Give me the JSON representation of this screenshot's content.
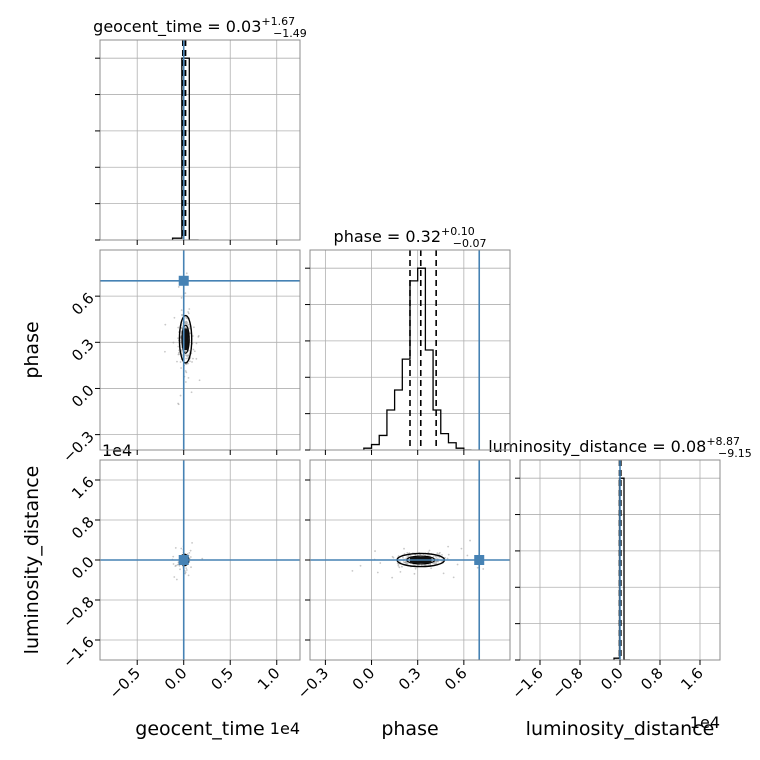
{
  "chart_data": {
    "type": "corner",
    "parameters": [
      "geocent_time",
      "phase",
      "luminosity_distance"
    ],
    "axis_labels": [
      "geocent_time",
      "phase",
      "luminosity_distance"
    ],
    "offset_labels": {
      "geocent_time": "1e4",
      "luminosity_distance": "1e4"
    },
    "ranges": {
      "geocent_time": [
        -0.9,
        1.25
      ],
      "phase": [
        -0.4,
        0.9
      ],
      "luminosity_distance": [
        -2.0,
        2.0
      ]
    },
    "ticks": {
      "geocent_time": {
        "values": [
          -0.5,
          0.0,
          0.5,
          1.0
        ],
        "labels": [
          "−0.5",
          "0.0",
          "0.5",
          "1.0"
        ]
      },
      "phase": {
        "values": [
          -0.3,
          0.0,
          0.3,
          0.6
        ],
        "labels": [
          "−0.3",
          "0.0",
          "0.3",
          "0.6"
        ]
      },
      "luminosity_distance": {
        "values": [
          -1.6,
          -0.8,
          0.0,
          0.8,
          1.6
        ],
        "labels": [
          "−1.6",
          "−0.8",
          "0.0",
          "0.8",
          "1.6"
        ]
      }
    },
    "truths": {
      "geocent_time": 0.0,
      "phase": 0.7,
      "luminosity_distance": 0.0
    },
    "truth_color": "#4682b4",
    "titles": [
      {
        "param": "geocent_time",
        "main": "geocent_time = 0.03",
        "sup": "+1.67",
        "sub": "−1.49"
      },
      {
        "param": "phase",
        "main": "phase = 0.32",
        "sup": "+0.10",
        "sub": "−0.07"
      },
      {
        "param": "luminosity_distance",
        "main": "luminosity_distance = 0.08",
        "sup": "+8.87",
        "sub": "−9.15"
      }
    ],
    "quantiles": {
      "geocent_time": [
        -0.01,
        0.003,
        0.02
      ],
      "phase": [
        0.25,
        0.32,
        0.42
      ],
      "luminosity_distance": [
        -0.01,
        0.008,
        0.017
      ]
    },
    "histograms": {
      "geocent_time": {
        "edges": [
          -0.12,
          -0.02,
          0.06,
          0.16
        ],
        "heights": [
          1,
          100,
          0
        ]
      },
      "phase": {
        "edges": [
          -0.05,
          0.0,
          0.05,
          0.1,
          0.15,
          0.2,
          0.25,
          0.3,
          0.35,
          0.4,
          0.45,
          0.5,
          0.55,
          0.6,
          0.65
        ],
        "heights": [
          1,
          3,
          8,
          22,
          33,
          50,
          93,
          100,
          55,
          22,
          9,
          4,
          1,
          0
        ]
      },
      "luminosity_distance": {
        "edges": [
          -0.12,
          -0.01,
          0.08,
          0.2
        ],
        "heights": [
          1,
          100,
          0
        ]
      }
    },
    "cores": {
      "phase_vs_geocent_time": {
        "x": 0.02,
        "y": 0.32,
        "sx": 0.03,
        "sy": 0.07
      },
      "luminosity_distance_vs_geocent_time": {
        "x": 0.01,
        "y": 0.0,
        "sx": 0.02,
        "sy": 0.05
      },
      "luminosity_distance_vs_phase": {
        "x": 0.32,
        "y": 0.0,
        "sx": 0.07,
        "sy": 0.06
      }
    }
  }
}
